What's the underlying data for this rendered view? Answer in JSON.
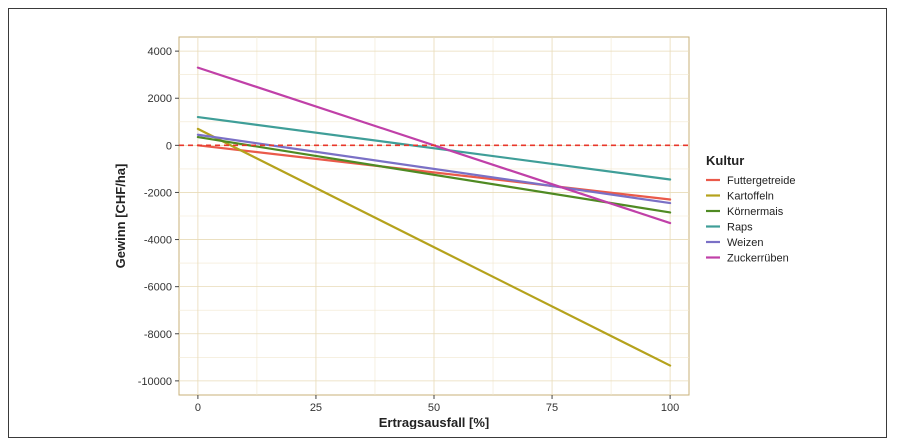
{
  "chart_data": {
    "type": "line",
    "title": "",
    "xlabel": "Ertragsausfall [%]",
    "ylabel": "Gewinn [CHF/ha]",
    "xlim": [
      -4,
      104
    ],
    "ylim": [
      -10600,
      4600
    ],
    "x_ticks": [
      0,
      25,
      50,
      75,
      100
    ],
    "x_tick_labels": [
      "0",
      "25",
      "50",
      "75",
      "100"
    ],
    "y_ticks": [
      4000,
      2000,
      0,
      -2000,
      -4000,
      -6000,
      -8000,
      -10000
    ],
    "y_tick_labels": [
      "4000",
      "2000",
      "0",
      "-2000",
      "-4000",
      "-6000",
      "-8000",
      "-10000"
    ],
    "grid": true,
    "reference_line": {
      "y": 0,
      "style": "dashed",
      "color": "#e8372b"
    },
    "legend": {
      "title": "Kultur",
      "placement": "right"
    },
    "series": [
      {
        "name": "Futtergetreide",
        "color": "#ea5a4a",
        "x": [
          0,
          100
        ],
        "values": [
          0,
          -2300
        ]
      },
      {
        "name": "Kartoffeln",
        "color": "#b5a21c",
        "x": [
          0,
          100
        ],
        "values": [
          700,
          -9350
        ]
      },
      {
        "name": "Körnermais",
        "color": "#4f8a23",
        "x": [
          0,
          100
        ],
        "values": [
          350,
          -2850
        ]
      },
      {
        "name": "Raps",
        "color": "#3f9e98",
        "x": [
          0,
          100
        ],
        "values": [
          1200,
          -1450
        ]
      },
      {
        "name": "Weizen",
        "color": "#7a70c6",
        "x": [
          0,
          100
        ],
        "values": [
          450,
          -2450
        ]
      },
      {
        "name": "Zuckerrüben",
        "color": "#c040a8",
        "x": [
          0,
          100
        ],
        "values": [
          3300,
          -3300
        ]
      }
    ]
  }
}
